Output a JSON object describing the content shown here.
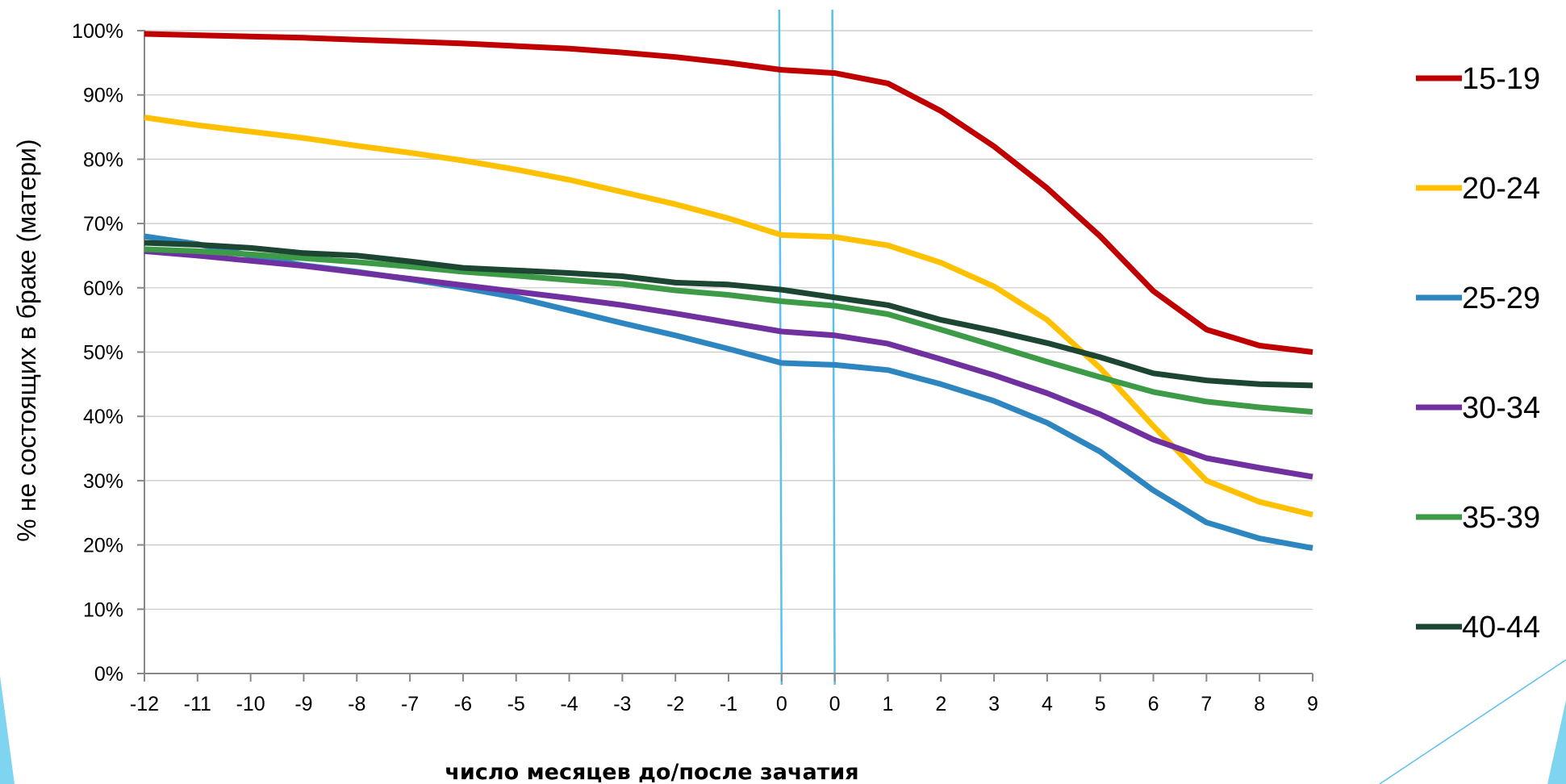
{
  "chart_data": {
    "type": "line",
    "xlabel": "число месяцев до/после зачатия",
    "ylabel": "% не состоящих в браке (матери)",
    "ylim": [
      0,
      100
    ],
    "yticks": [
      "0%",
      "10%",
      "20%",
      "30%",
      "40%",
      "50%",
      "60%",
      "70%",
      "80%",
      "90%",
      "100%"
    ],
    "categories": [
      "-12",
      "-11",
      "-10",
      "-9",
      "-8",
      "-7",
      "-6",
      "-5",
      "-4",
      "-3",
      "-2",
      "-1",
      "0",
      "0",
      "1",
      "2",
      "3",
      "4",
      "5",
      "6",
      "7",
      "8",
      "9"
    ],
    "grid": true,
    "legend_position": "right",
    "reference_lines_at": [
      "0",
      "0"
    ],
    "series": [
      {
        "name": "15-19",
        "color": "#c00000",
        "values": [
          99.5,
          99.3,
          99.1,
          98.9,
          98.6,
          98.3,
          98.0,
          97.6,
          97.2,
          96.6,
          95.9,
          95.0,
          93.9,
          93.4,
          91.8,
          87.5,
          82.0,
          75.5,
          68.0,
          59.5,
          53.5,
          51.0,
          50.0
        ]
      },
      {
        "name": "20-24",
        "color": "#ffc000",
        "values": [
          86.5,
          85.3,
          84.3,
          83.3,
          82.1,
          81.0,
          79.8,
          78.4,
          76.8,
          74.9,
          73.0,
          70.8,
          68.2,
          67.9,
          66.6,
          63.9,
          60.2,
          55.0,
          47.5,
          38.5,
          30.0,
          26.7,
          24.7
        ]
      },
      {
        "name": "25-29",
        "color": "#2e86c1",
        "values": [
          68.0,
          66.8,
          65.0,
          63.5,
          62.5,
          61.3,
          60.0,
          58.5,
          56.5,
          54.5,
          52.6,
          50.5,
          48.3,
          48.0,
          47.2,
          45.0,
          42.4,
          39.0,
          34.5,
          28.5,
          23.5,
          21.0,
          19.5
        ]
      },
      {
        "name": "30-34",
        "color": "#7030a0",
        "values": [
          65.7,
          65.0,
          64.2,
          63.4,
          62.4,
          61.4,
          60.4,
          59.4,
          58.4,
          57.3,
          56.0,
          54.6,
          53.2,
          52.6,
          51.3,
          48.9,
          46.4,
          43.6,
          40.3,
          36.4,
          33.5,
          32.0,
          30.6
        ]
      },
      {
        "name": "35-39",
        "color": "#3d9b47",
        "values": [
          66.0,
          65.7,
          65.2,
          64.6,
          64.0,
          63.3,
          62.5,
          61.9,
          61.2,
          60.6,
          59.6,
          58.9,
          57.9,
          57.2,
          55.9,
          53.5,
          51.0,
          48.5,
          46.1,
          43.8,
          42.3,
          41.4,
          40.7
        ]
      },
      {
        "name": "40-44",
        "color": "#1c4532",
        "values": [
          67.0,
          66.7,
          66.2,
          65.4,
          65.0,
          64.1,
          63.1,
          62.7,
          62.3,
          61.8,
          60.8,
          60.5,
          59.7,
          58.5,
          57.3,
          55.0,
          53.3,
          51.4,
          49.2,
          46.7,
          45.6,
          45.0,
          44.8
        ]
      }
    ]
  },
  "decor": {
    "guide_color": "#5bc0eb",
    "gridline_color": "#c8c8c8",
    "axis_color": "#888888",
    "corner_accent_color": "#7fd4ef"
  }
}
